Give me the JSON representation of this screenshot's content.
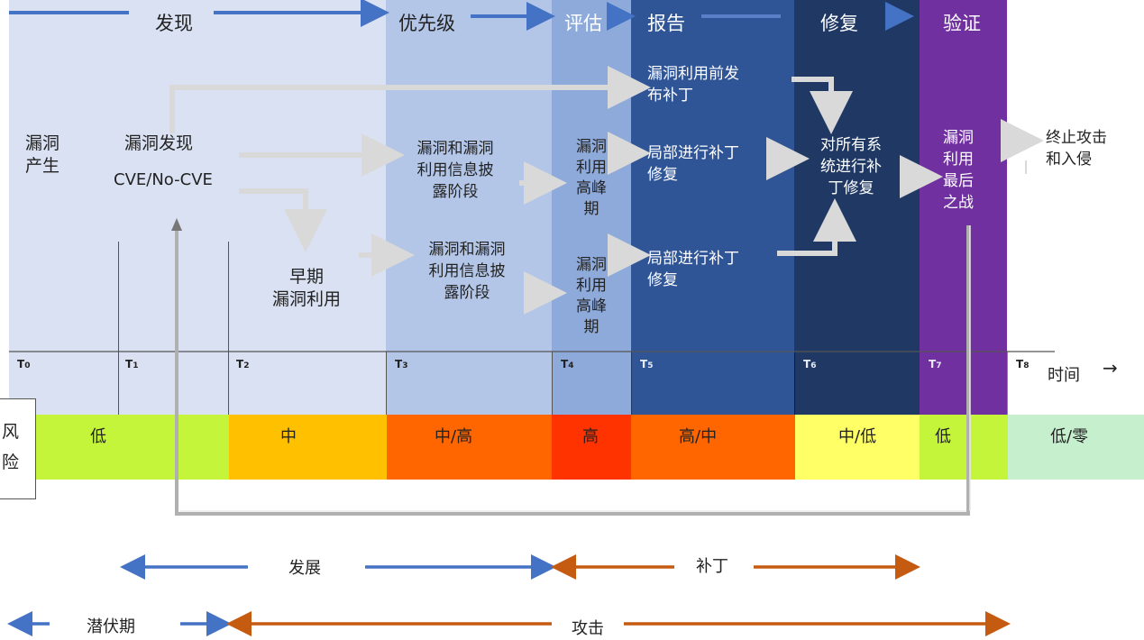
{
  "phases": [
    {
      "label": "发现",
      "color": "#d9e1f2",
      "text_color": "#222222"
    },
    {
      "label": "优先级",
      "color": "#b3c6e7",
      "text_color": "#222222"
    },
    {
      "label": "评估",
      "color": "#8eaadb",
      "text_color": "#ffffff"
    },
    {
      "label": "报告",
      "color": "#2f5597",
      "text_color": "#ffffff"
    },
    {
      "label": "修复",
      "color": "#203864",
      "text_color": "#ffffff"
    },
    {
      "label": "验证",
      "color": "#7030a0",
      "text_color": "#ffffff"
    }
  ],
  "nodes": {
    "vuln_birth": "漏洞\n产生",
    "vuln_discovery": "漏洞发现",
    "cve": "CVE/No-CVE",
    "early_exploit": "早期\n漏洞利用",
    "disclosure_1": "漏洞和漏洞\n利用信息披\n露阶段",
    "disclosure_2": "漏洞和漏洞\n利用信息披\n露阶段",
    "peak_1": "漏洞\n利用\n高峰\n期",
    "peak_2": "漏洞\n利用\n高峰\n期",
    "pre_patch": "漏洞利用前发\n布补丁",
    "partial_patch_1": "局部进行补丁\n修复",
    "partial_patch_2": "局部进行补丁\n修复",
    "full_patch": "对所有系\n统进行补\n丁修复",
    "last_stand": "漏洞\n利用\n最后\n之战",
    "end_attack": "终止攻击\n和入侵"
  },
  "timeline": {
    "ticks": [
      "T0",
      "T1",
      "T2",
      "T3",
      "T4",
      "T5",
      "T6",
      "T7",
      "T8"
    ],
    "axis_label": "时间",
    "arrow_glyph": "→"
  },
  "risk": {
    "label": "风\n险",
    "levels": [
      {
        "label": "低",
        "color": "#c4f53a"
      },
      {
        "label": "中",
        "color": "#ffc000"
      },
      {
        "label": "中/高",
        "color": "#ff6600"
      },
      {
        "label": "高",
        "color": "#ff3300"
      },
      {
        "label": "高/中",
        "color": "#ff6600"
      },
      {
        "label": "中/低",
        "color": "#ffff66"
      },
      {
        "label": "低",
        "color": "#c4f53a"
      },
      {
        "label": "低/零",
        "color": "#c6efce"
      }
    ]
  },
  "legend": {
    "development": "发展",
    "patch": "补丁",
    "incubation": "潜伏期",
    "attack": "攻击",
    "blue_color": "#4472c4",
    "brown_color": "#c55a11"
  },
  "arrow_color": "#d9d9d9"
}
